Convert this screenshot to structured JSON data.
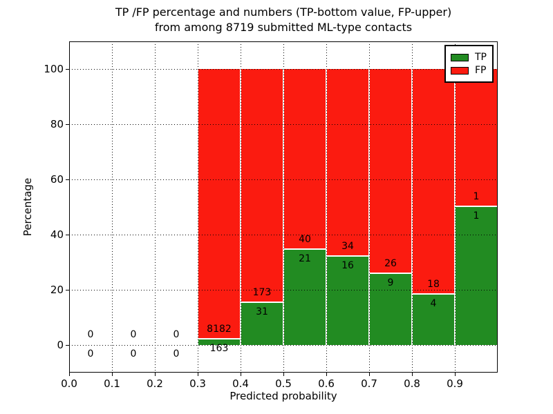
{
  "title": {
    "line1": "TP /FP percentage and numbers (TP-bottom value, FP-upper)",
    "line2": "from among 8719 submitted ML-type contacts"
  },
  "axes": {
    "xlabel": "Predicted probability",
    "ylabel": "Percentage",
    "xtick_values": [
      0.0,
      0.1,
      0.2,
      0.3,
      0.4,
      0.5,
      0.6,
      0.7,
      0.8,
      0.9
    ],
    "xtick_labels": [
      "0.0",
      "0.1",
      "0.2",
      "0.3",
      "0.4",
      "0.5",
      "0.6",
      "0.7",
      "0.8",
      "0.9"
    ],
    "ytick_values": [
      0,
      20,
      40,
      60,
      80,
      100
    ],
    "ytick_labels": [
      "0",
      "20",
      "40",
      "60",
      "80",
      "100"
    ]
  },
  "legend": {
    "entries": [
      {
        "label": "TP",
        "color": "#228B22"
      },
      {
        "label": "FP",
        "color": "#FB1B10"
      }
    ]
  },
  "colors": {
    "tp": "#228B22",
    "fp": "#FB1B10",
    "grid": "#000000",
    "background": "#FFFFFF",
    "frame": "#000000"
  },
  "chart_data": {
    "type": "bar",
    "stacked": true,
    "normalized_to_percent": true,
    "title": "TP /FP percentage and numbers (TP-bottom value, FP-upper) from among 8719 submitted ML-type contacts",
    "xlabel": "Predicted probability",
    "ylabel": "Percentage",
    "xlim": [
      0.0,
      1.0
    ],
    "ylim": [
      -10,
      110
    ],
    "grid": true,
    "grid_style": "dotted",
    "legend_position": "upper-right",
    "total_submitted_contacts": 8719,
    "bin_width": 0.1,
    "label_convention": "TP count below segment boundary, FP count above segment boundary",
    "bins": [
      {
        "x0": 0.0,
        "x1": 0.1,
        "tp_count": 0,
        "fp_count": 0,
        "tp_pct": null,
        "fp_pct": null
      },
      {
        "x0": 0.1,
        "x1": 0.2,
        "tp_count": 0,
        "fp_count": 0,
        "tp_pct": null,
        "fp_pct": null
      },
      {
        "x0": 0.2,
        "x1": 0.3,
        "tp_count": 0,
        "fp_count": 0,
        "tp_pct": null,
        "fp_pct": null
      },
      {
        "x0": 0.3,
        "x1": 0.4,
        "tp_count": 163,
        "fp_count": 8182,
        "tp_pct": 1.95,
        "fp_pct": 98.05
      },
      {
        "x0": 0.4,
        "x1": 0.5,
        "tp_count": 31,
        "fp_count": 173,
        "tp_pct": 15.2,
        "fp_pct": 84.8
      },
      {
        "x0": 0.5,
        "x1": 0.6,
        "tp_count": 21,
        "fp_count": 40,
        "tp_pct": 34.43,
        "fp_pct": 65.57
      },
      {
        "x0": 0.6,
        "x1": 0.7,
        "tp_count": 16,
        "fp_count": 34,
        "tp_pct": 32.0,
        "fp_pct": 68.0
      },
      {
        "x0": 0.7,
        "x1": 0.8,
        "tp_count": 9,
        "fp_count": 26,
        "tp_pct": 25.71,
        "fp_pct": 74.29
      },
      {
        "x0": 0.8,
        "x1": 0.9,
        "tp_count": 4,
        "fp_count": 18,
        "tp_pct": 18.18,
        "fp_pct": 81.82
      },
      {
        "x0": 0.9,
        "x1": 1.0,
        "tp_count": 1,
        "fp_count": 1,
        "tp_pct": 50.0,
        "fp_pct": 50.0
      }
    ],
    "series": [
      {
        "name": "TP",
        "values_pct": [
          0,
          0,
          0,
          1.95,
          15.2,
          34.43,
          32.0,
          25.71,
          18.18,
          50.0
        ]
      },
      {
        "name": "FP",
        "values_pct": [
          0,
          0,
          0,
          98.05,
          84.8,
          65.57,
          68.0,
          74.29,
          81.82,
          50.0
        ]
      }
    ]
  }
}
